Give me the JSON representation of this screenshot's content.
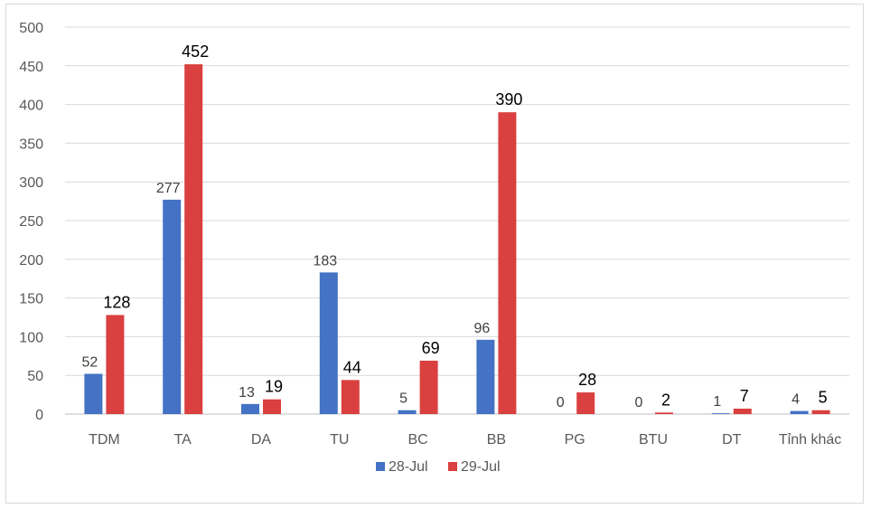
{
  "chart_data": {
    "type": "bar",
    "categories": [
      "TDM",
      "TA",
      "DA",
      "TU",
      "BC",
      "BB",
      "PG",
      "BTU",
      "DT",
      "Tỉnh khác"
    ],
    "series": [
      {
        "name": "28-Jul",
        "color": "#4472c4",
        "values": [
          52,
          277,
          13,
          183,
          5,
          96,
          0,
          0,
          1,
          4
        ]
      },
      {
        "name": "29-Jul",
        "color": "#d9403f",
        "values": [
          128,
          452,
          19,
          44,
          69,
          390,
          28,
          2,
          7,
          5
        ]
      }
    ],
    "ylim": [
      0,
      500
    ],
    "yticks": [
      0,
      50,
      100,
      150,
      200,
      250,
      300,
      350,
      400,
      450,
      500
    ],
    "grid": true,
    "legend": "bottom",
    "title": "",
    "xlabel": "",
    "ylabel": ""
  }
}
